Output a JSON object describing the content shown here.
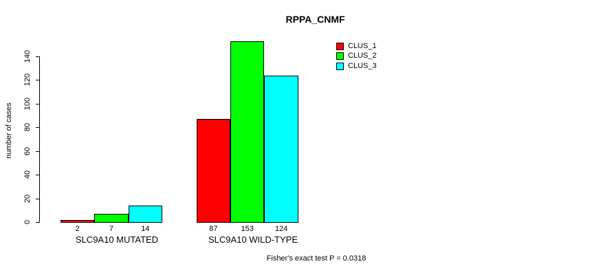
{
  "chart_data": {
    "type": "bar",
    "title": "RPPA_CNMF",
    "xlabel": "",
    "ylabel": "number of cases",
    "categories": [
      "SLC9A10 MUTATED",
      "SLC9A10 WILD-TYPE"
    ],
    "series": [
      {
        "name": "CLUS_1",
        "color": "#ff0000",
        "values": [
          2,
          87
        ]
      },
      {
        "name": "CLUS_2",
        "color": "#00ff00",
        "values": [
          7,
          153
        ]
      },
      {
        "name": "CLUS_3",
        "color": "#00ffff",
        "values": [
          14,
          124
        ]
      }
    ],
    "bar_value_labels": [
      [
        "2",
        "7",
        "14"
      ],
      [
        "87",
        "153",
        "124"
      ]
    ],
    "y_ticks": [
      0,
      20,
      40,
      60,
      80,
      100,
      120,
      140
    ],
    "ylim": [
      0,
      140
    ],
    "grid": false,
    "legend_position": "top-right",
    "annotation": "Fisher's exact test P = 0.0318"
  },
  "colors": {
    "background": "#ffffff",
    "text": "#000000",
    "axis": "#000000"
  }
}
